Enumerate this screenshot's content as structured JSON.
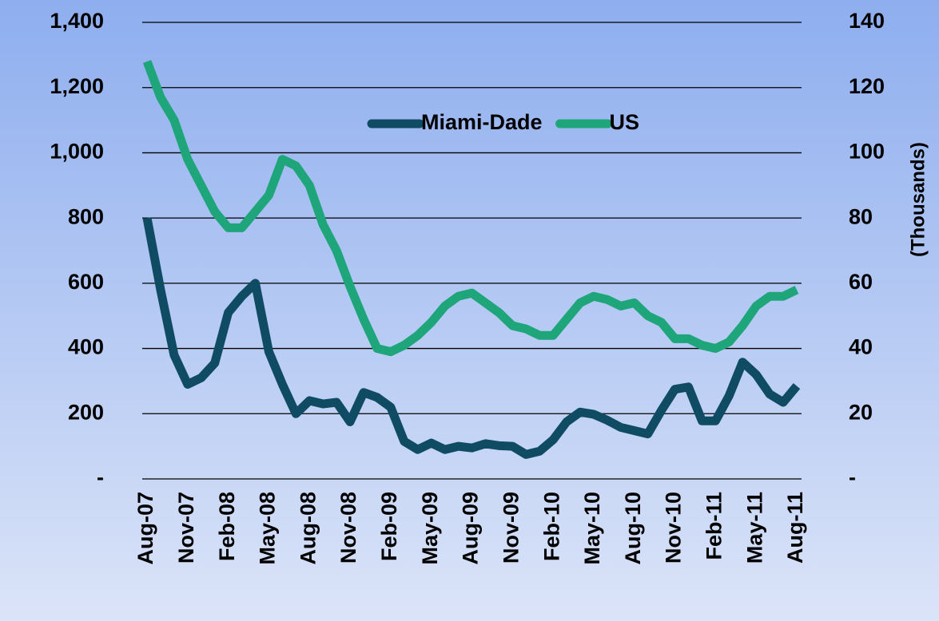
{
  "chart_data": {
    "type": "line",
    "categories": [
      "Aug-07",
      null,
      null,
      "Nov-07",
      null,
      null,
      "Feb-08",
      null,
      null,
      "May-08",
      null,
      null,
      "Aug-08",
      null,
      null,
      "Nov-08",
      null,
      null,
      "Feb-09",
      null,
      null,
      "May-09",
      null,
      null,
      "Aug-09",
      null,
      null,
      "Nov-09",
      null,
      null,
      "Feb-10",
      null,
      null,
      "May-10",
      null,
      null,
      "Aug-10",
      null,
      null,
      "Nov-10",
      null,
      null,
      "Feb-11",
      null,
      null,
      "May-11",
      null,
      null,
      "Aug-11"
    ],
    "series": [
      {
        "name": "Miami-Dade",
        "color": "#0f4c63",
        "values": [
          800,
          580,
          380,
          290,
          310,
          355,
          510,
          560,
          600,
          390,
          290,
          200,
          240,
          230,
          235,
          175,
          265,
          250,
          220,
          115,
          90,
          110,
          90,
          100,
          95,
          108,
          102,
          100,
          75,
          85,
          120,
          175,
          205,
          198,
          180,
          158,
          148,
          138,
          210,
          275,
          282,
          178,
          178,
          255,
          358,
          320,
          260,
          235,
          285
        ]
      },
      {
        "name": "US",
        "color": "#1fa57a",
        "axis": "y2",
        "values": [
          128,
          117,
          110,
          98,
          90,
          82,
          77,
          77,
          82,
          87,
          98,
          96,
          90,
          78,
          70,
          59,
          49,
          40,
          39,
          41,
          44,
          48,
          53,
          56,
          57,
          54,
          51,
          47,
          46,
          44,
          44,
          49,
          54,
          56,
          55,
          53,
          54,
          50,
          48,
          43,
          43,
          41,
          40,
          42,
          47,
          53,
          56,
          56,
          58
        ]
      }
    ],
    "ylim": [
      0,
      1400
    ],
    "yticks": [
      {
        "value": 0,
        "label": "-"
      },
      200,
      400,
      600,
      800,
      {
        "value": 1000,
        "label": "1,000"
      },
      {
        "value": 1200,
        "label": "1,200"
      },
      {
        "value": 1400,
        "label": "1,400"
      }
    ],
    "y2lim": [
      0,
      140
    ],
    "y2ticks": [
      {
        "value": 0,
        "label": "-"
      },
      20,
      40,
      60,
      80,
      100,
      120,
      140
    ],
    "y2label": "(Thousands)",
    "grid": true,
    "legend": "top"
  }
}
